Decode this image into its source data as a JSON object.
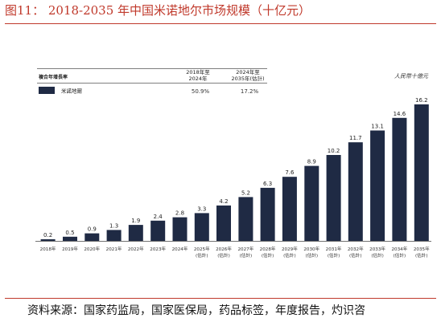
{
  "figure": {
    "title": "图11：  2018-2035 年中国米诺地尔市场规模（十亿元）",
    "source": "资料来源：国家药监局，国家医保局，药品标签，年度报告，灼识咨"
  },
  "cagr_table": {
    "header_label": "複合年增長率",
    "col1_line1": "2018年至",
    "col1_line2": "2024年",
    "col2_line1": "2024年至",
    "col2_line2": "2035年(估計)",
    "row_label": "米諾地爾",
    "row_color": "#1f2a44",
    "row_values": [
      "50.9%",
      "17.2%"
    ]
  },
  "chart_data": {
    "type": "bar",
    "title": "",
    "unit": "人民幣十億元",
    "bar_color": "#1f2a44",
    "categories": [
      {
        "line1": "2018年",
        "line2": ""
      },
      {
        "line1": "2019年",
        "line2": ""
      },
      {
        "line1": "2020年",
        "line2": ""
      },
      {
        "line1": "2021年",
        "line2": ""
      },
      {
        "line1": "2022年",
        "line2": ""
      },
      {
        "line1": "2023年",
        "line2": ""
      },
      {
        "line1": "2024年",
        "line2": ""
      },
      {
        "line1": "2025年",
        "line2": "(估計)"
      },
      {
        "line1": "2026年",
        "line2": "(估計)"
      },
      {
        "line1": "2027年",
        "line2": "(估計)"
      },
      {
        "line1": "2028年",
        "line2": "(估計)"
      },
      {
        "line1": "2029年",
        "line2": "(估計)"
      },
      {
        "line1": "2030年",
        "line2": "(估計)"
      },
      {
        "line1": "2031年",
        "line2": "(估計)"
      },
      {
        "line1": "2032年",
        "line2": "(估計)"
      },
      {
        "line1": "2033年",
        "line2": "(估計)"
      },
      {
        "line1": "2034年",
        "line2": "(估計)"
      },
      {
        "line1": "2035年",
        "line2": "(估計)"
      }
    ],
    "values": [
      0.2,
      0.5,
      0.9,
      1.3,
      1.9,
      2.4,
      2.8,
      3.3,
      4.2,
      5.2,
      6.3,
      7.6,
      8.9,
      10.2,
      11.7,
      13.1,
      14.6,
      16.2
    ],
    "value_labels": [
      "0.2",
      "0.5",
      "0.9",
      "1.3",
      "1.9",
      "2.4",
      "2.8",
      "3.3",
      "4.2",
      "5.2",
      "6.3",
      "7.6",
      "8.9",
      "10.2",
      "11.7",
      "13.1",
      "14.6",
      "16.2"
    ],
    "ylim": [
      0,
      16.2
    ],
    "grid": false,
    "legend": "top-left"
  }
}
